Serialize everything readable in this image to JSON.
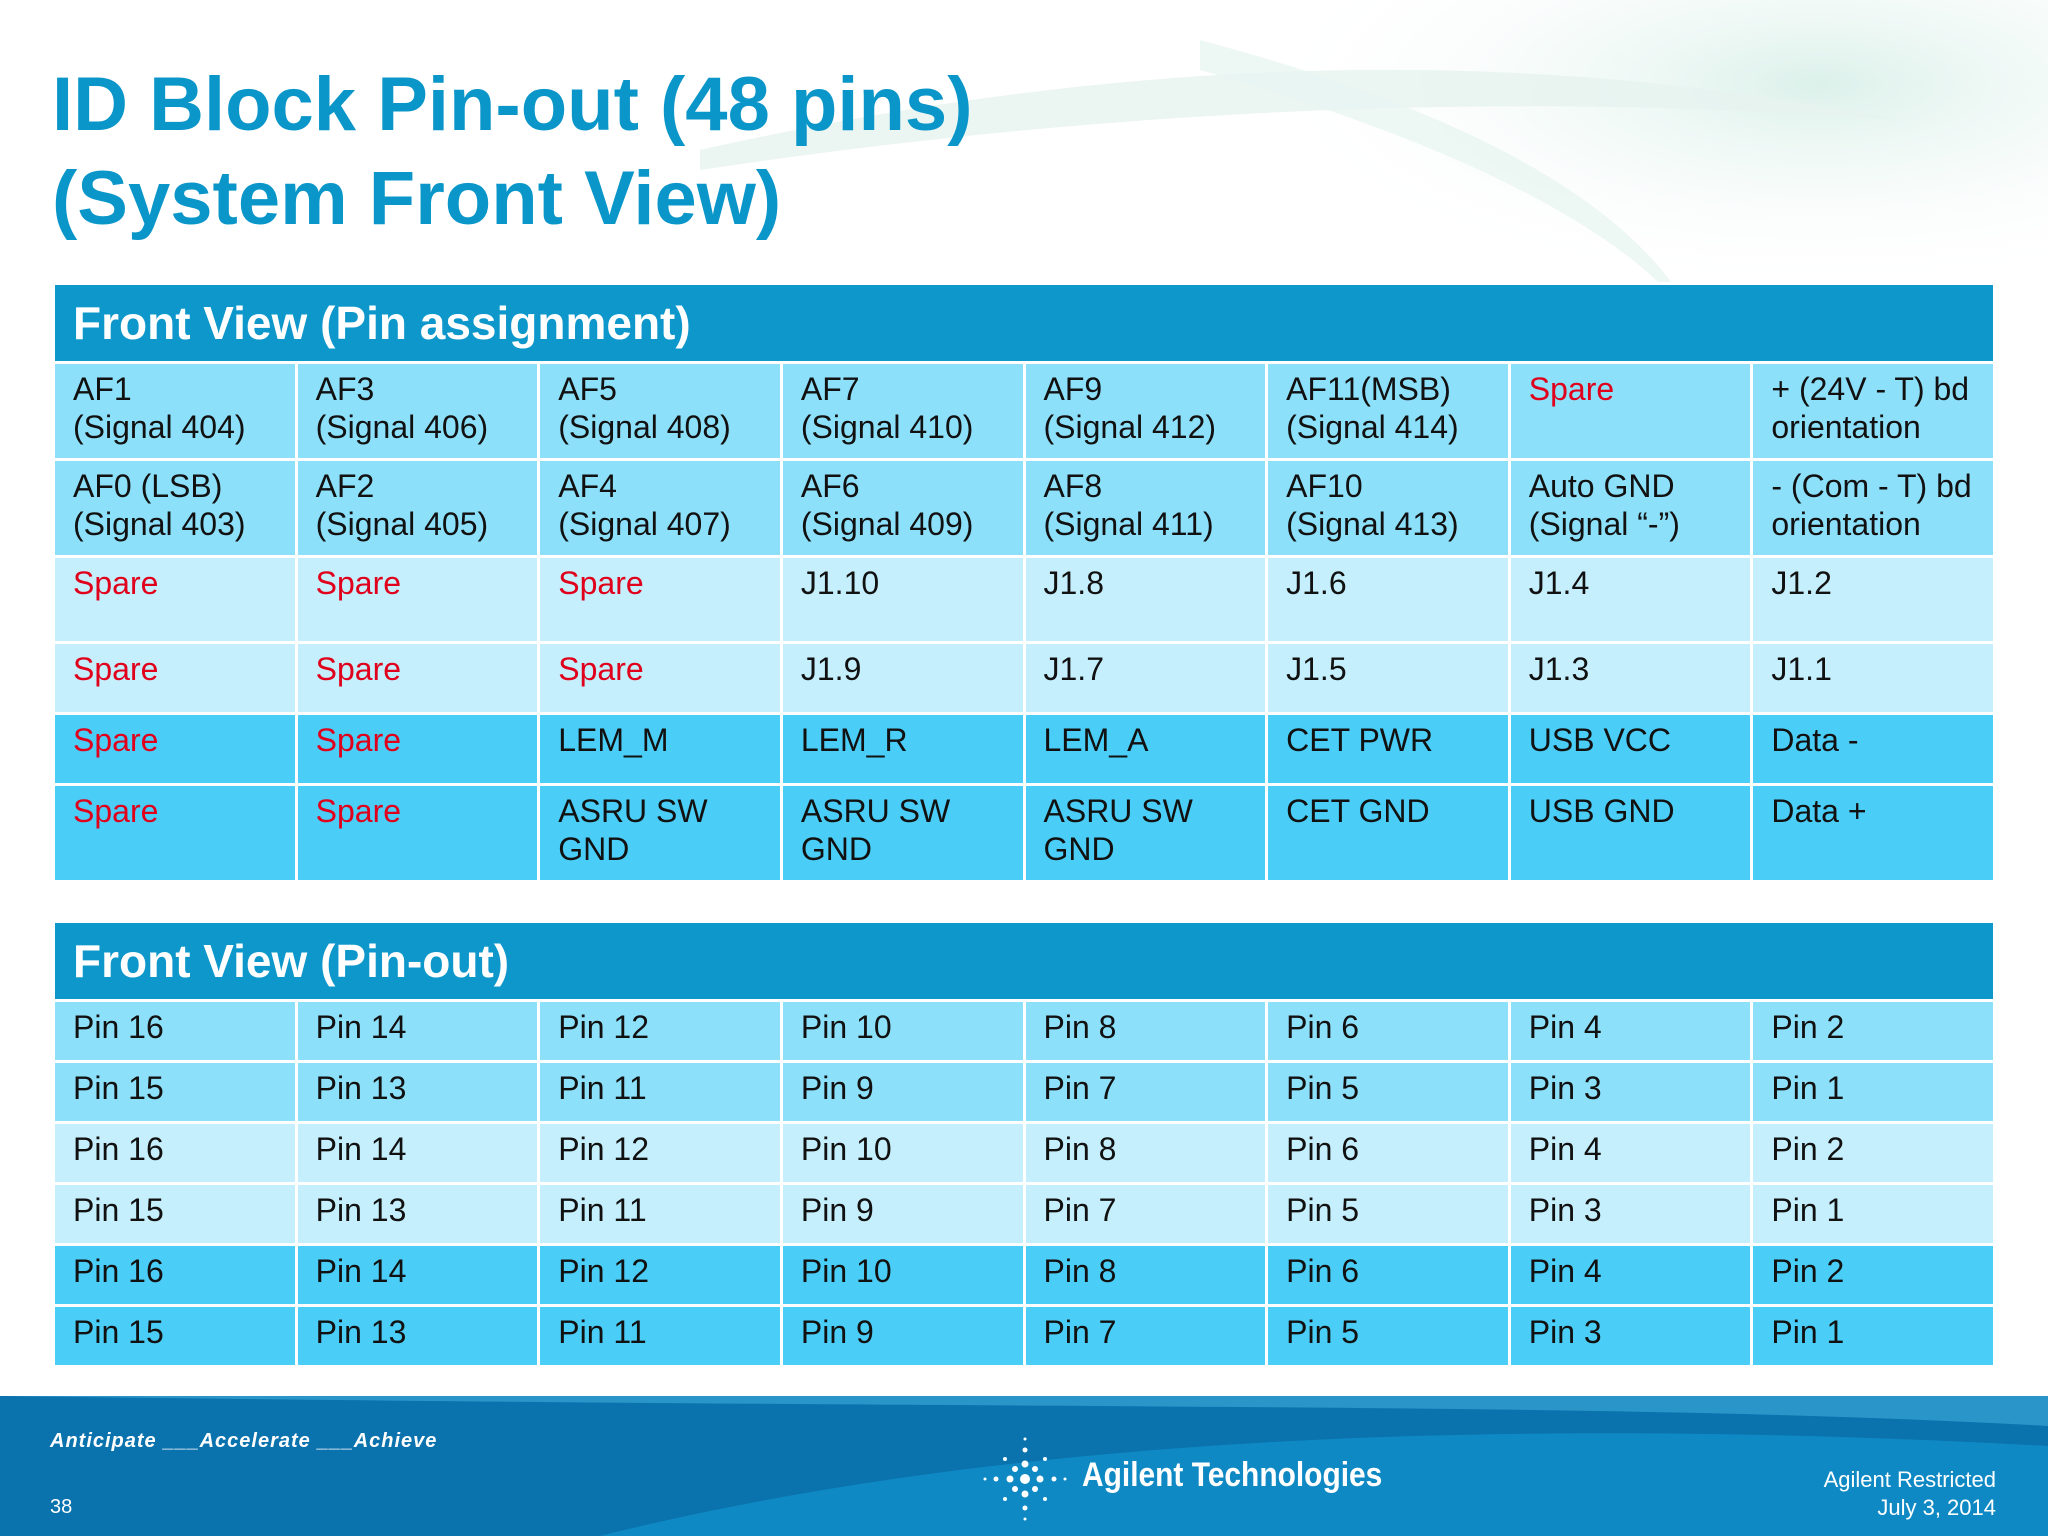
{
  "title": {
    "line1": "ID Block Pin-out (48 pins)",
    "line2": "(System Front View)"
  },
  "assignment_table": {
    "header": "Front View (Pin assignment)",
    "rows": [
      [
        {
          "l1": "AF1",
          "l2": "(Signal 404)"
        },
        {
          "l1": "AF3",
          "l2": "(Signal 406)"
        },
        {
          "l1": "AF5",
          "l2": "(Signal 408)"
        },
        {
          "l1": "AF7",
          "l2": "(Signal 410)"
        },
        {
          "l1": "AF9",
          "l2": "(Signal 412)"
        },
        {
          "l1": "AF11(MSB)",
          "l2": "(Signal 414)"
        },
        {
          "l1": "Spare",
          "l2": "",
          "red": true
        },
        {
          "l1": "+ (24V - T) bd",
          "l2": "orientation"
        }
      ],
      [
        {
          "l1": "AF0 (LSB)",
          "l2": "(Signal 403)"
        },
        {
          "l1": "AF2",
          "l2": "(Signal 405)"
        },
        {
          "l1": "AF4",
          "l2": "(Signal 407)"
        },
        {
          "l1": "AF6",
          "l2": "(Signal 409)"
        },
        {
          "l1": "AF8",
          "l2": "(Signal 411)"
        },
        {
          "l1": "AF10",
          "l2": "(Signal 413)"
        },
        {
          "l1": "Auto GND",
          "l2": "(Signal “-”)"
        },
        {
          "l1": "- (Com - T) bd",
          "l2": "orientation"
        }
      ],
      [
        {
          "l1": "Spare",
          "l2": "",
          "red": true
        },
        {
          "l1": "Spare",
          "l2": "",
          "red": true
        },
        {
          "l1": "Spare",
          "l2": "",
          "red": true
        },
        {
          "l1": "J1.10",
          "l2": ""
        },
        {
          "l1": "J1.8",
          "l2": ""
        },
        {
          "l1": "J1.6",
          "l2": ""
        },
        {
          "l1": "J1.4",
          "l2": ""
        },
        {
          "l1": "J1.2",
          "l2": ""
        }
      ],
      [
        {
          "l1": "Spare",
          "l2": "",
          "red": true
        },
        {
          "l1": "Spare",
          "l2": "",
          "red": true
        },
        {
          "l1": "Spare",
          "l2": "",
          "red": true
        },
        {
          "l1": "J1.9",
          "l2": ""
        },
        {
          "l1": "J1.7",
          "l2": ""
        },
        {
          "l1": "J1.5",
          "l2": ""
        },
        {
          "l1": "J1.3",
          "l2": ""
        },
        {
          "l1": "J1.1",
          "l2": ""
        }
      ],
      [
        {
          "l1": "Spare",
          "l2": "",
          "red": true
        },
        {
          "l1": "Spare",
          "l2": "",
          "red": true
        },
        {
          "l1": "LEM_M",
          "l2": ""
        },
        {
          "l1": "LEM_R",
          "l2": ""
        },
        {
          "l1": "LEM_A",
          "l2": ""
        },
        {
          "l1": "CET PWR",
          "l2": ""
        },
        {
          "l1": "USB VCC",
          "l2": ""
        },
        {
          "l1": "Data -",
          "l2": ""
        }
      ],
      [
        {
          "l1": "Spare",
          "l2": "",
          "red": true
        },
        {
          "l1": "Spare",
          "l2": "",
          "red": true
        },
        {
          "l1": "ASRU SW",
          "l2": "GND"
        },
        {
          "l1": "ASRU SW",
          "l2": "GND"
        },
        {
          "l1": "ASRU SW",
          "l2": "GND"
        },
        {
          "l1": "CET GND",
          "l2": ""
        },
        {
          "l1": "USB GND",
          "l2": ""
        },
        {
          "l1": "Data +",
          "l2": ""
        }
      ]
    ]
  },
  "pinout_table": {
    "header": "Front View (Pin-out)",
    "rows": [
      [
        "Pin 16",
        "Pin 14",
        "Pin 12",
        "Pin 10",
        "Pin 8",
        "Pin 6",
        "Pin 4",
        "Pin 2"
      ],
      [
        "Pin 15",
        "Pin 13",
        "Pin 11",
        "Pin 9",
        "Pin 7",
        "Pin 5",
        "Pin 3",
        "Pin 1"
      ],
      [
        "Pin 16",
        "Pin 14",
        "Pin 12",
        "Pin 10",
        "Pin 8",
        "Pin 6",
        "Pin 4",
        "Pin 2"
      ],
      [
        "Pin 15",
        "Pin 13",
        "Pin 11",
        "Pin 9",
        "Pin 7",
        "Pin 5",
        "Pin 3",
        "Pin 1"
      ],
      [
        "Pin 16",
        "Pin 14",
        "Pin 12",
        "Pin 10",
        "Pin 8",
        "Pin 6",
        "Pin 4",
        "Pin 2"
      ],
      [
        "Pin 15",
        "Pin 13",
        "Pin 11",
        "Pin 9",
        "Pin 7",
        "Pin 5",
        "Pin 3",
        "Pin 1"
      ]
    ]
  },
  "footer": {
    "tagline": "Anticipate ___Accelerate ___Achieve",
    "page_number": "38",
    "logo_text": "Agilent Technologies",
    "classification": "Agilent Restricted",
    "date": "July 3, 2014"
  },
  "colors": {
    "title": "#0b96c9",
    "header_bar": "#0d97cb",
    "band_light": "#c5effc",
    "band_medium": "#8de0fa",
    "band_strong": "#4acdf6",
    "spare_text": "#e0001b",
    "footer": "#0a72ad"
  }
}
